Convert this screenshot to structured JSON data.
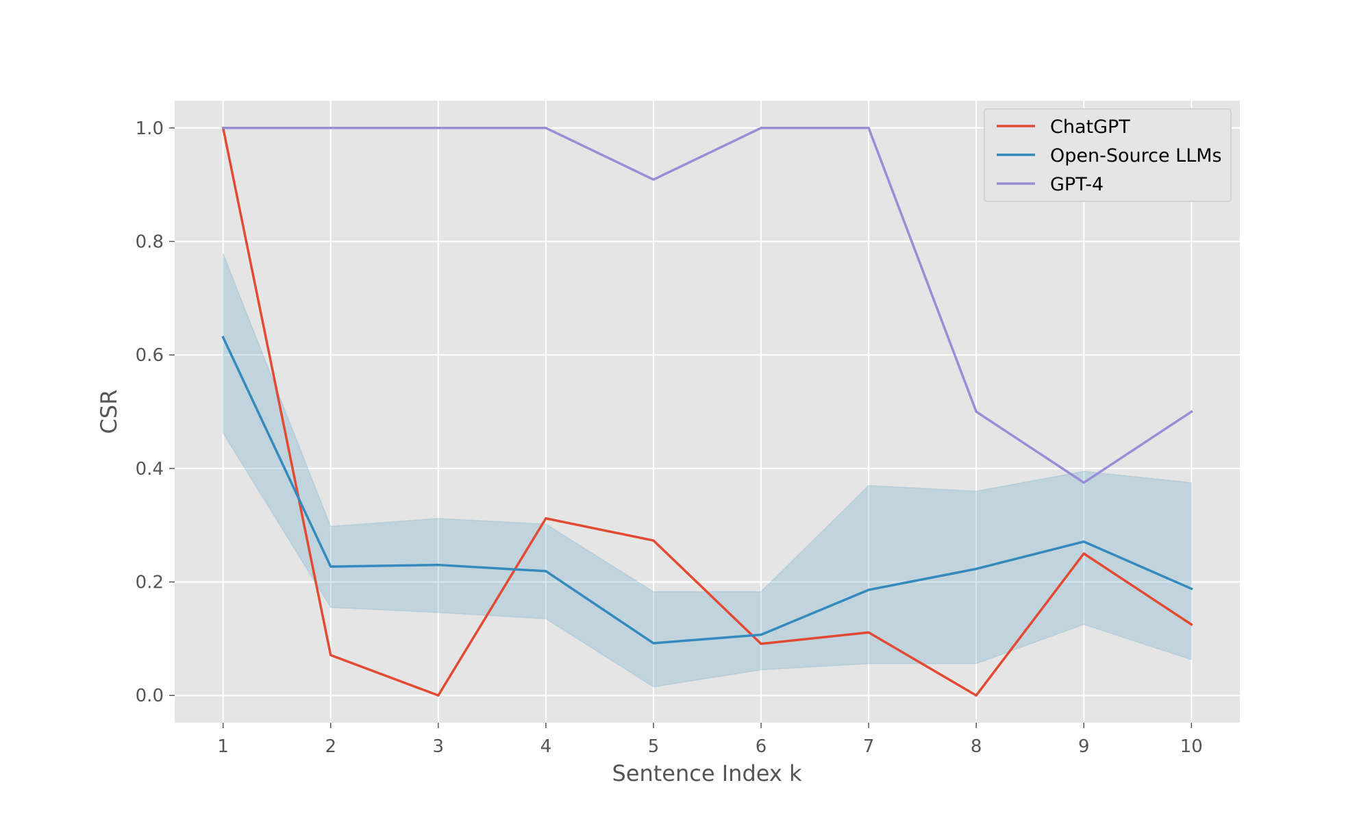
{
  "chart_data": {
    "type": "line",
    "title": "",
    "xlabel": "Sentence Index k",
    "ylabel": "CSR",
    "x": [
      1,
      2,
      3,
      4,
      5,
      6,
      7,
      8,
      9,
      10
    ],
    "x_tick_labels": [
      "1",
      "2",
      "3",
      "4",
      "5",
      "6",
      "7",
      "8",
      "9",
      "10"
    ],
    "y_ticks": [
      0.0,
      0.2,
      0.4,
      0.6,
      0.8,
      1.0
    ],
    "y_tick_labels": [
      "0.0",
      "0.2",
      "0.4",
      "0.6",
      "0.8",
      "1.0"
    ],
    "xlim": [
      0.55,
      10.45
    ],
    "ylim": [
      -0.048,
      1.048
    ],
    "grid": true,
    "legend_position": "top-right",
    "series": [
      {
        "name": "ChatGPT",
        "color": "#E24A33",
        "values": [
          1.0,
          0.071,
          0.0,
          0.312,
          0.273,
          0.091,
          0.111,
          0.0,
          0.25,
          0.125
        ]
      },
      {
        "name": "Open-Source LLMs",
        "color": "#348ABD",
        "values": [
          0.631,
          0.227,
          0.23,
          0.219,
          0.092,
          0.107,
          0.186,
          0.223,
          0.271,
          0.188
        ],
        "band": {
          "lower": [
            0.462,
            0.155,
            0.146,
            0.135,
            0.015,
            0.045,
            0.056,
            0.056,
            0.125,
            0.063
          ],
          "upper": [
            0.779,
            0.298,
            0.312,
            0.302,
            0.183,
            0.183,
            0.37,
            0.36,
            0.395,
            0.375
          ],
          "color": "#348ABD"
        }
      },
      {
        "name": "GPT-4",
        "color": "#988ED5",
        "values": [
          1.0,
          1.0,
          1.0,
          1.0,
          0.909,
          1.0,
          1.0,
          0.5,
          0.375,
          0.5
        ]
      }
    ]
  }
}
